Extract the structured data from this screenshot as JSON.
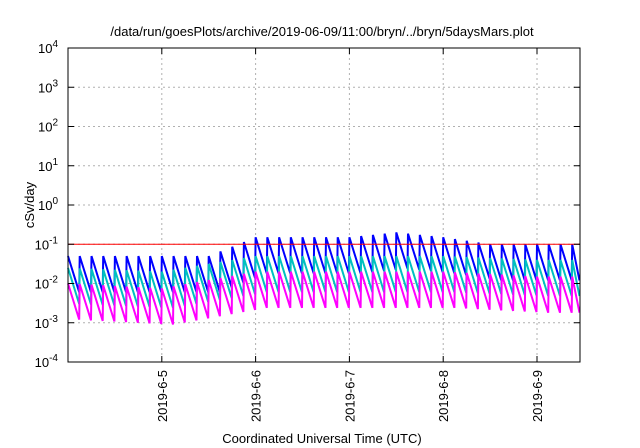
{
  "chart_data": {
    "type": "line",
    "title": "/data/run/goesPlots/archive/2019-06-09/11:00/bryn/../bryn/5daysMars.plot",
    "xlabel": "Coordinated Universal Time (UTC)",
    "ylabel": "cSv/day",
    "yscale": "log",
    "ylim": [
      0.0001,
      10000
    ],
    "y_ticks": [
      {
        "value": 0.0001,
        "base": "10",
        "exp": "-4"
      },
      {
        "value": 0.001,
        "base": "10",
        "exp": "-3"
      },
      {
        "value": 0.01,
        "base": "10",
        "exp": "-2"
      },
      {
        "value": 0.1,
        "base": "10",
        "exp": "-1"
      },
      {
        "value": 1,
        "base": "10",
        "exp": "0"
      },
      {
        "value": 10,
        "base": "10",
        "exp": "1"
      },
      {
        "value": 100,
        "base": "10",
        "exp": "2"
      },
      {
        "value": 1000,
        "base": "10",
        "exp": "3"
      },
      {
        "value": 10000,
        "base": "10",
        "exp": "4"
      }
    ],
    "xlim": [
      "2019-06-04T00:00",
      "2019-06-09T11:00"
    ],
    "x_ticks": [
      {
        "value": "2019-06-05T00:00",
        "label": "2019-6-5"
      },
      {
        "value": "2019-06-06T00:00",
        "label": "2019-6-6"
      },
      {
        "value": "2019-06-07T00:00",
        "label": "2019-6-7"
      },
      {
        "value": "2019-06-08T00:00",
        "label": "2019-6-8"
      },
      {
        "value": "2019-06-09T00:00",
        "label": "2019-6-9"
      }
    ],
    "grid": true,
    "reference_line": {
      "value": 0.1,
      "color": "#ff0000"
    },
    "series": [
      {
        "color": "#0000ff",
        "values_at_cycle": [
          {
            "x": "2019-06-04T00:00",
            "y": 0.01
          },
          {
            "x": "2019-06-04T12:00",
            "y": 0.01
          },
          {
            "x": "2019-06-05T00:00",
            "y": 0.01
          },
          {
            "x": "2019-06-05T12:00",
            "y": 0.01
          },
          {
            "x": "2019-06-06T00:00",
            "y": 0.03
          },
          {
            "x": "2019-06-06T12:00",
            "y": 0.03
          },
          {
            "x": "2019-06-07T00:00",
            "y": 0.03
          },
          {
            "x": "2019-06-07T12:00",
            "y": 0.04
          },
          {
            "x": "2019-06-08T00:00",
            "y": 0.03
          },
          {
            "x": "2019-06-08T12:00",
            "y": 0.02
          },
          {
            "x": "2019-06-09T00:00",
            "y": 0.02
          },
          {
            "x": "2019-06-09T11:00",
            "y": 0.02
          }
        ]
      },
      {
        "color": "#00c0c0",
        "values_at_cycle": [
          {
            "x": "2019-06-04T00:00",
            "y": 0.005
          },
          {
            "x": "2019-06-05T00:00",
            "y": 0.004
          },
          {
            "x": "2019-06-06T00:00",
            "y": 0.01
          },
          {
            "x": "2019-06-07T00:00",
            "y": 0.01
          },
          {
            "x": "2019-06-08T00:00",
            "y": 0.01
          },
          {
            "x": "2019-06-09T00:00",
            "y": 0.008
          }
        ]
      },
      {
        "color": "#ff00ff",
        "values_at_cycle": [
          {
            "x": "2019-06-04T00:00",
            "y": 0.002
          },
          {
            "x": "2019-06-05T00:00",
            "y": 0.0015
          },
          {
            "x": "2019-06-06T00:00",
            "y": 0.004
          },
          {
            "x": "2019-06-07T00:00",
            "y": 0.004
          },
          {
            "x": "2019-06-08T00:00",
            "y": 0.004
          },
          {
            "x": "2019-06-09T00:00",
            "y": 0.003
          }
        ]
      }
    ]
  }
}
